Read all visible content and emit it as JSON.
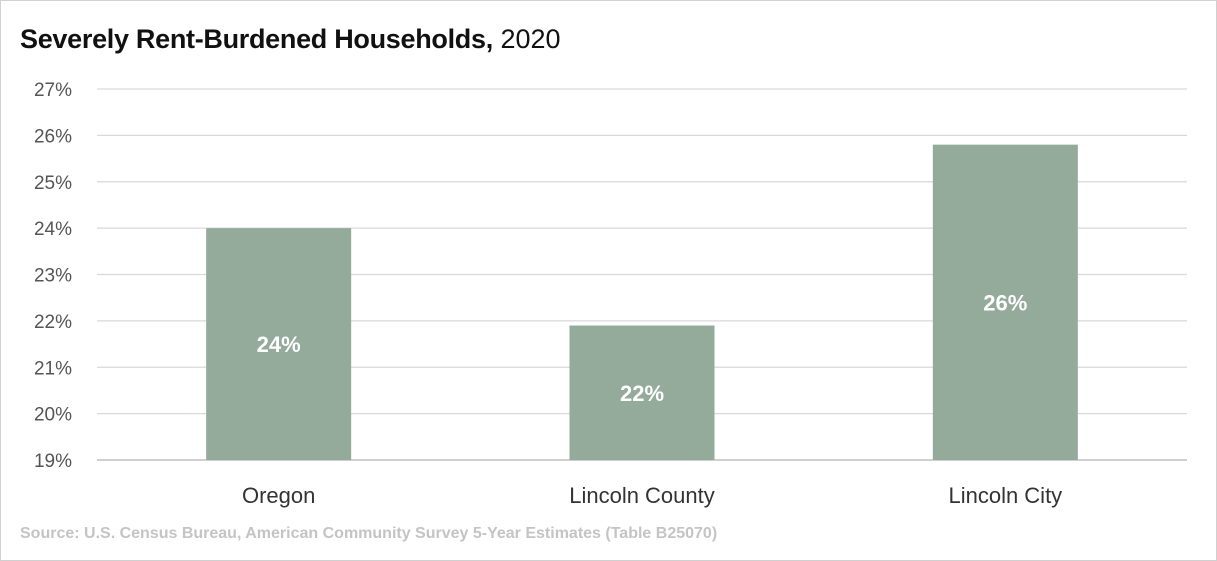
{
  "chart_data": {
    "type": "bar",
    "title": "Severely Rent-Burdened Households,",
    "title_suffix": "2020",
    "categories": [
      "Oregon",
      "Lincoln County",
      "Lincoln City"
    ],
    "values": [
      24.0,
      21.9,
      25.8
    ],
    "data_labels": [
      "24%",
      "22%",
      "26%"
    ],
    "y_ticks": [
      "19%",
      "20%",
      "21%",
      "22%",
      "23%",
      "24%",
      "25%",
      "26%",
      "27%"
    ],
    "ylim": [
      19,
      27
    ],
    "grid": true,
    "bar_color": "#94ab9c",
    "grid_color": "#d9d9d9"
  },
  "source": "Source: U.S. Census Bureau,  American Community Survey 5-Year Estimates (Table B25070)"
}
